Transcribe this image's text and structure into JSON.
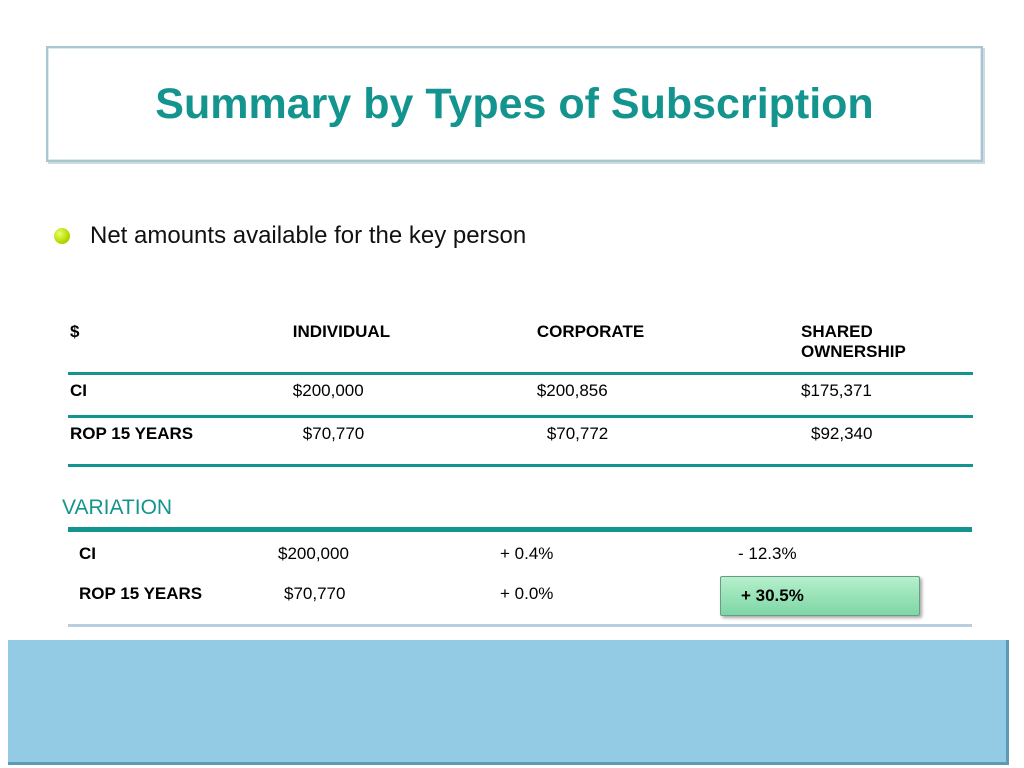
{
  "title": "Summary by Types of Subscription",
  "bullet": "Net amounts available for the key person",
  "main_table": {
    "headers": [
      "$",
      "INDIVIDUAL",
      "CORPORATE",
      "SHARED OWNERSHIP"
    ],
    "rows": [
      [
        "CI",
        "$200,000",
        "$200,856",
        "$175,371"
      ],
      [
        "ROP 15 YEARS",
        "$70,770",
        "$70,772",
        "$92,340"
      ]
    ]
  },
  "variation": {
    "label": "VARIATION",
    "rows": [
      [
        "CI",
        "$200,000",
        "+ 0.4%",
        "- 12.3%"
      ],
      [
        "ROP 15 YEARS",
        "$70,770",
        "+ 0.0%",
        "+ 30.5%"
      ]
    ],
    "highlight_color": "#9fe6bd"
  },
  "colors": {
    "accent": "#14948f",
    "bottom_panel": "#94cbe4"
  }
}
